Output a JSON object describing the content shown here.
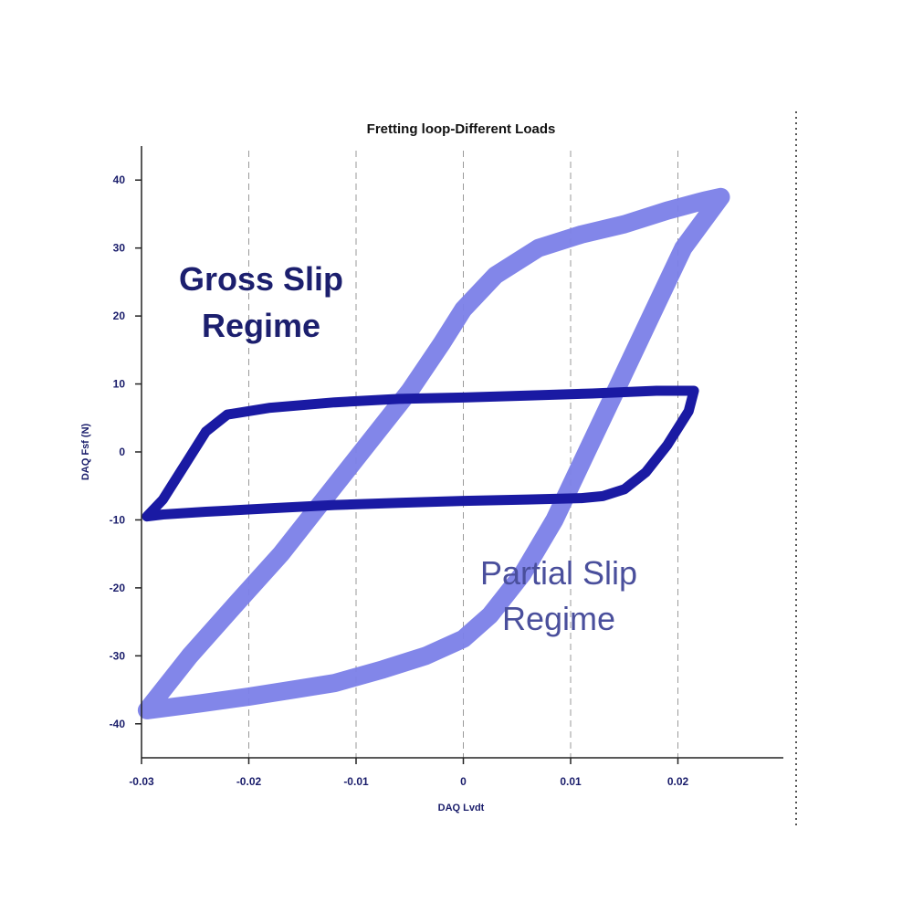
{
  "chart_data": {
    "type": "line",
    "title": "Fretting loop-Different Loads",
    "xlabel": "DAQ Lvdt",
    "ylabel": "DAQ Fsf (N)",
    "xlim": [
      -0.03,
      0.03
    ],
    "ylim": [
      -45,
      45
    ],
    "xticks": [
      -0.03,
      -0.02,
      -0.01,
      0,
      0.01,
      0.02
    ],
    "xtick_labels": [
      "-0.03",
      "-0.02",
      "-0.01",
      "0",
      "0.01",
      "0.02"
    ],
    "yticks": [
      -40,
      -30,
      -20,
      -10,
      0,
      10,
      20,
      30,
      40
    ],
    "ytick_labels": [
      "-40",
      "-30",
      "-20",
      "-10",
      "0",
      "10",
      "20",
      "30",
      "40"
    ],
    "grid": "vertical dashed",
    "annotations": [
      {
        "text_lines": [
          "Gross Slip",
          "Regime"
        ],
        "color": "#1c1f6e"
      },
      {
        "text_lines": [
          "Partial Slip",
          "Regime"
        ],
        "color": "#4a4f9c"
      }
    ],
    "series": [
      {
        "color": "#7b7fe8",
        "stroke": "band",
        "x": [
          -0.0295,
          -0.0255,
          -0.021,
          -0.017,
          -0.014,
          -0.011,
          -0.008,
          -0.005,
          -0.002,
          0.0,
          0.003,
          0.007,
          0.011,
          0.015,
          0.019,
          0.0225,
          0.024,
          0.0205,
          0.0175,
          0.0145,
          0.0115,
          0.0085,
          0.0055,
          0.0025,
          0.0,
          -0.0035,
          -0.0075,
          -0.012,
          -0.016,
          -0.02,
          -0.0245,
          -0.0295
        ],
        "y": [
          -38,
          -30,
          -22,
          -15,
          -9,
          -3,
          3,
          9,
          16,
          21,
          26,
          30,
          32,
          33.5,
          35.5,
          37,
          37.5,
          30,
          20,
          10,
          0,
          -10,
          -18,
          -24,
          -27.5,
          -30,
          -32,
          -34,
          -35,
          -36,
          -37,
          -38
        ]
      },
      {
        "color": "#1a1aa3",
        "stroke": "thick",
        "x": [
          -0.0295,
          -0.028,
          -0.026,
          -0.024,
          -0.022,
          -0.018,
          -0.012,
          -0.006,
          0.0,
          0.006,
          0.012,
          0.018,
          0.0215,
          0.021,
          0.019,
          0.017,
          0.015,
          0.013,
          0.011,
          0.006,
          0.0,
          -0.006,
          -0.012,
          -0.018,
          -0.024,
          -0.028,
          -0.0295
        ],
        "y": [
          -9.5,
          -7,
          -2,
          3,
          5.5,
          6.5,
          7.3,
          7.8,
          8,
          8.3,
          8.6,
          9,
          9,
          6,
          1,
          -3,
          -5.5,
          -6.5,
          -6.8,
          -7,
          -7.2,
          -7.5,
          -7.8,
          -8.3,
          -8.8,
          -9.2,
          -9.5
        ]
      }
    ]
  }
}
